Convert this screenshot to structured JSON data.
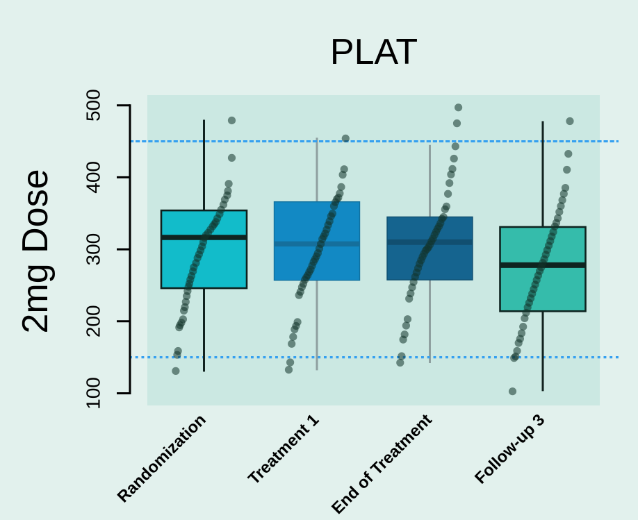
{
  "chart_data": {
    "type": "boxplot",
    "title": "PLAT",
    "ylabel": "2mg Dose",
    "xlabel": "",
    "ylim": [
      100,
      500
    ],
    "y_ticks": [
      100,
      200,
      300,
      400,
      500
    ],
    "grid": false,
    "legend": "none",
    "reference_lines": {
      "lines": [
        {
          "value": 450,
          "dash": [
            6.2,
            2.9
          ]
        },
        {
          "value": 150,
          "dash": [
            3.9,
            4.85
          ]
        }
      ],
      "color": "#35a0f0",
      "width": 3.2,
      "style": "dashed"
    },
    "colors": {
      "page_background": "#e2f1ed",
      "panel_background": "#cbe8e2",
      "axis": "#000000",
      "point": "#123329",
      "point_opacity": 0.55
    },
    "categories": [
      "Randomization",
      "Treatment 1",
      "End of Treatment",
      "Follow-up 3"
    ],
    "groups": [
      {
        "label": "Randomization",
        "fill": "#12bcca",
        "border_color": "#0c201e",
        "border_width": 2.6,
        "median_color": "#0f2421",
        "median_width": 7.6,
        "whisker_color": "#11221f",
        "whisker_width": 3,
        "stats": {
          "whisker_low": 130,
          "q1": 246,
          "median": 316.5,
          "q3": 354,
          "whisker_high": 480
        },
        "points": [
          [
            -40.6,
            131
          ],
          [
            -38.6,
            153.4
          ],
          [
            -37.3,
            158.8
          ],
          [
            -35.7,
            191.5
          ],
          [
            -34.5,
            194.6
          ],
          [
            -32.5,
            198.1
          ],
          [
            -30.1,
            202.8
          ],
          [
            -28.9,
            214.7
          ],
          [
            -27.5,
            219.7
          ],
          [
            -26.2,
            227
          ],
          [
            -24.9,
            235
          ],
          [
            -23.6,
            242
          ],
          [
            -22.3,
            248
          ],
          [
            -21.0,
            252.5
          ],
          [
            -19.7,
            258
          ],
          [
            -18.0,
            263
          ],
          [
            -15.8,
            269.5
          ],
          [
            -14.7,
            275
          ],
          [
            -11.5,
            281
          ],
          [
            -9.3,
            288
          ],
          [
            -7.1,
            293
          ],
          [
            -4.9,
            298.5
          ],
          [
            -2.7,
            304
          ],
          [
            -1.0,
            310
          ],
          [
            0.6,
            316
          ],
          [
            2.8,
            319.5
          ],
          [
            6.0,
            323
          ],
          [
            9.3,
            327.5
          ],
          [
            12.6,
            332
          ],
          [
            14.8,
            335
          ],
          [
            17.0,
            338
          ],
          [
            19.2,
            343
          ],
          [
            22.5,
            349
          ],
          [
            24.7,
            355
          ],
          [
            28.0,
            362
          ],
          [
            30.0,
            369
          ],
          [
            33.4,
            375
          ],
          [
            34.5,
            381
          ],
          [
            35.6,
            391
          ],
          [
            40.0,
            427
          ],
          [
            40.0,
            479
          ]
        ]
      },
      {
        "label": "Treatment 1",
        "fill": "#1289c4",
        "border_color": "#10719f",
        "border_width": 1.4,
        "median_color": "#156f9c",
        "median_width": 7.4,
        "whisker_color": "#8fa0a0",
        "whisker_width": 3,
        "stats": {
          "whisker_low": 132,
          "q1": 257,
          "median": 307.5,
          "q3": 366,
          "whisker_high": 455
        },
        "points": [
          [
            -40.5,
            132.7
          ],
          [
            -38.4,
            142.9
          ],
          [
            -36.3,
            168.7
          ],
          [
            -34.2,
            178.4
          ],
          [
            -32.1,
            188.8
          ],
          [
            -30.0,
            193.6
          ],
          [
            -27.9,
            199
          ],
          [
            -25.8,
            236.3
          ],
          [
            -23.7,
            241
          ],
          [
            -21.6,
            247.5
          ],
          [
            -19.5,
            252
          ],
          [
            -17.4,
            257.5
          ],
          [
            -15.3,
            261
          ],
          [
            -13.2,
            264.1
          ],
          [
            -11.1,
            268.4
          ],
          [
            -9.0,
            272
          ],
          [
            -6.9,
            277.3
          ],
          [
            -4.8,
            282.5
          ],
          [
            -2.7,
            286.3
          ],
          [
            -0.6,
            290.4
          ],
          [
            1.4,
            294.7
          ],
          [
            3.5,
            301
          ],
          [
            5.6,
            307.4
          ],
          [
            7.7,
            314.2
          ],
          [
            9.8,
            317.9
          ],
          [
            11.9,
            322.1
          ],
          [
            14.0,
            327.4
          ],
          [
            16.1,
            333.7
          ],
          [
            18.2,
            339
          ],
          [
            20.3,
            345.9
          ],
          [
            22.4,
            349.6
          ],
          [
            24.5,
            360
          ],
          [
            26.6,
            365.5
          ],
          [
            28.7,
            369.7
          ],
          [
            30.8,
            371.8
          ],
          [
            32.9,
            377.6
          ],
          [
            35.0,
            386.6
          ],
          [
            37.1,
            403.5
          ],
          [
            39.2,
            411.3
          ],
          [
            41.3,
            454
          ]
        ]
      },
      {
        "label": "End of Treatment",
        "fill": "#15648f",
        "border_color": "#0f4f70",
        "border_width": 1.4,
        "median_color": "#114f70",
        "median_width": 8,
        "whisker_color": "#8fa0a0",
        "whisker_width": 3,
        "stats": {
          "whisker_low": 142,
          "q1": 257.5,
          "median": 310,
          "q3": 345,
          "whisker_high": 445
        },
        "points": [
          [
            -42.7,
            142.5
          ],
          [
            -40.6,
            151.6
          ],
          [
            -38.4,
            174.6
          ],
          [
            -36.3,
            181.8
          ],
          [
            -34.1,
            194
          ],
          [
            -32.0,
            203
          ],
          [
            -29.8,
            231.4
          ],
          [
            -27.7,
            238.7
          ],
          [
            -25.5,
            247.2
          ],
          [
            -23.4,
            254.5
          ],
          [
            -21.2,
            261.7
          ],
          [
            -19.1,
            267.8
          ],
          [
            -16.9,
            273.9
          ],
          [
            -14.8,
            279.9
          ],
          [
            -12.6,
            284.8
          ],
          [
            -10.5,
            289.6
          ],
          [
            -8.3,
            293.9
          ],
          [
            -6.2,
            298.1
          ],
          [
            -4.0,
            300.5
          ],
          [
            -1.9,
            303
          ],
          [
            0.3,
            306.6
          ],
          [
            2.4,
            311.4
          ],
          [
            4.6,
            315.1
          ],
          [
            6.7,
            319.9
          ],
          [
            8.9,
            324.2
          ],
          [
            11.0,
            328.4
          ],
          [
            13.2,
            332
          ],
          [
            15.3,
            336.3
          ],
          [
            17.5,
            342.3
          ],
          [
            19.6,
            345
          ],
          [
            21.8,
            355.6
          ],
          [
            23.9,
            359.5
          ],
          [
            26.1,
            377
          ],
          [
            28.2,
            392
          ],
          [
            30.4,
            404
          ],
          [
            32.5,
            411.6
          ],
          [
            34.7,
            426
          ],
          [
            36.8,
            443
          ],
          [
            39.0,
            475
          ],
          [
            41.1,
            497
          ]
        ]
      },
      {
        "label": "Follow-up 3",
        "fill": "#35bcab",
        "border_color": "#0e2420",
        "border_width": 2.6,
        "median_color": "#0e2420",
        "median_width": 8,
        "whisker_color": "#11221f",
        "whisker_width": 3,
        "stats": {
          "whisker_low": 103,
          "q1": 214,
          "median": 278,
          "q3": 331,
          "whisker_high": 478
        },
        "points": [
          [
            -43.5,
            102.7
          ],
          [
            -41.3,
            149.0
          ],
          [
            -39.2,
            151.2
          ],
          [
            -37.0,
            158.9
          ],
          [
            -34.8,
            169.9
          ],
          [
            -32.6,
            175.7
          ],
          [
            -30.5,
            183.4
          ],
          [
            -28.3,
            192.5
          ],
          [
            -26.1,
            204.2
          ],
          [
            -24.0,
            211.9
          ],
          [
            -21.8,
            219.4
          ],
          [
            -19.6,
            225.7
          ],
          [
            -17.4,
            232
          ],
          [
            -15.3,
            238.3
          ],
          [
            -13.1,
            244.6
          ],
          [
            -10.9,
            251
          ],
          [
            -8.8,
            257.3
          ],
          [
            -6.6,
            263.6
          ],
          [
            -4.4,
            269.9
          ],
          [
            -2.2,
            274.9
          ],
          [
            -0.1,
            281.2
          ],
          [
            2.1,
            286.3
          ],
          [
            4.3,
            292.6
          ],
          [
            6.4,
            298.9
          ],
          [
            8.6,
            305.2
          ],
          [
            10.8,
            311.5
          ],
          [
            12.9,
            317.8
          ],
          [
            15.1,
            324.1
          ],
          [
            17.3,
            331.7
          ],
          [
            19.5,
            336.8
          ],
          [
            21.6,
            343.1
          ],
          [
            23.8,
            351.9
          ],
          [
            26.0,
            360.1
          ],
          [
            28.1,
            368.3
          ],
          [
            30.3,
            377.1
          ],
          [
            32.5,
            385.3
          ],
          [
            34.7,
            410.5
          ],
          [
            36.8,
            432.6
          ],
          [
            39.0,
            478
          ]
        ]
      }
    ]
  }
}
